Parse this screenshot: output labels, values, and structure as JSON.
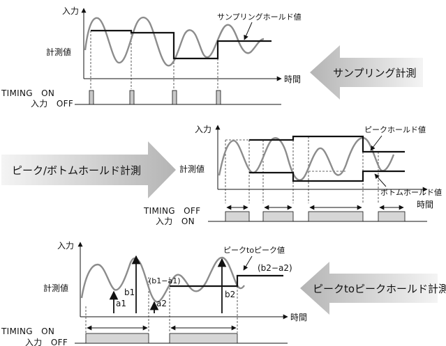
{
  "colors": {
    "measured_wave": "#8c8c8c",
    "hold_line": "#111111",
    "axis": "#111111",
    "dashed_guide": "#333333",
    "pulse_fill": "#c8c8c8",
    "block_fill": "#d6d6d6",
    "big_arrow_light": "#f4f4f4",
    "big_arrow_dark": "#b4b4b4"
  },
  "icons": [
    "right-arrow-icon",
    "left-arrow-icon",
    "double-headed-arrow-icon"
  ],
  "panels": {
    "sampling": {
      "y_axis_label": "入力",
      "measured_label": "計測値",
      "x_axis_label": "時間",
      "hold_label": "サンプリングホールド値",
      "timing_label": "TIMING　ON",
      "input_label": "入力　OFF",
      "mode_title": "サンプリング計測"
    },
    "peak_bottom": {
      "y_axis_label": "入力",
      "measured_label": "計測値",
      "x_axis_label": "時間",
      "peak_label": "ピークホールド値",
      "bottom_label": "ボトムホールド値",
      "timing_label": "TIMING　OFF",
      "input_label": "入力　ON",
      "mode_title": "ピーク/ボトムホールド計測"
    },
    "peak_to_peak": {
      "y_axis_label": "入力",
      "measured_label": "計測値",
      "x_axis_label": "時間",
      "value_label": "ピークtoピーク値",
      "formula_1": "(b1−a1)",
      "formula_2": "(b2−a2)",
      "a1": "a1",
      "b1": "b1",
      "a2": "a2",
      "b2": "b2",
      "timing_label": "TIMING　ON",
      "input_label": "入力　OFF",
      "mode_title": "ピークtoピークホールド計測"
    }
  }
}
